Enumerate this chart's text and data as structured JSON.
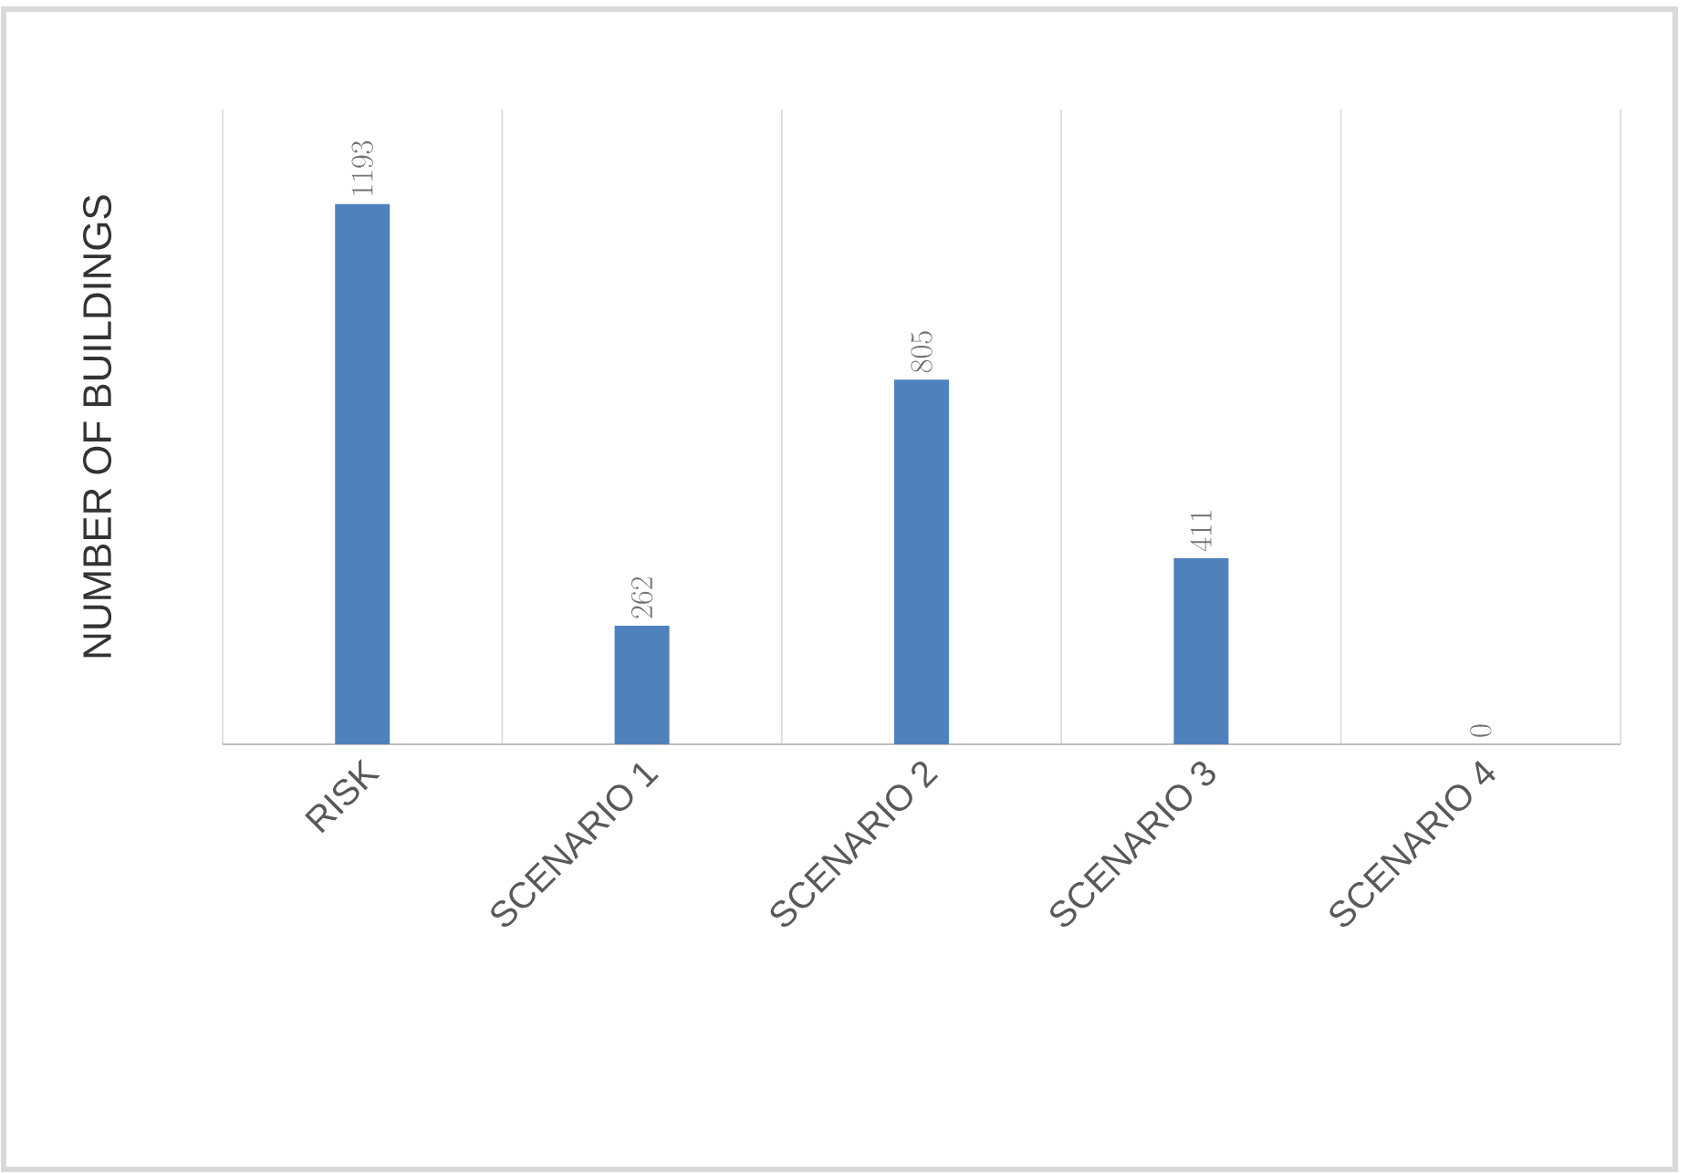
{
  "chart_data": {
    "type": "bar",
    "ylabel": "NUMBER OF BUILDINGS",
    "categories": [
      "RISK",
      "SCENARIO 1",
      "SCENARIO 2",
      "SCENARIO 3",
      "SCENARIO 4"
    ],
    "values": [
      1193,
      262,
      805,
      411,
      0
    ],
    "color": "#4f81bd",
    "data_labels": true,
    "grid": "x"
  }
}
